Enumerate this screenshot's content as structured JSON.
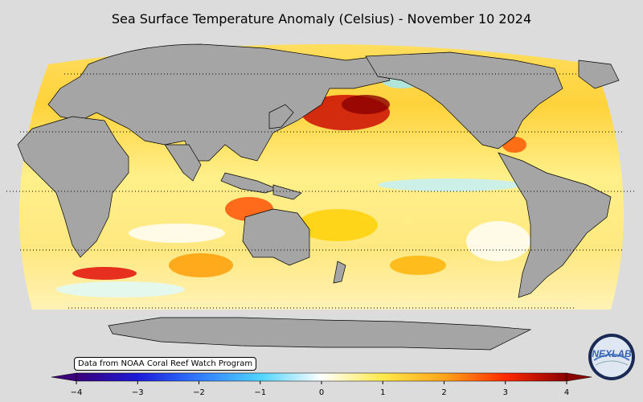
{
  "title": "Sea Surface Temperature Anomaly (Celsius) - November 10 2024",
  "credit": "Data from NOAA Coral Reef Watch Program",
  "colorbar": {
    "min": -4,
    "max": 4,
    "tick_labels": [
      "−4",
      "−3",
      "−2",
      "−1",
      "0",
      "1",
      "2",
      "3",
      "4"
    ],
    "tick_values": [
      -4,
      -3,
      -2,
      -1,
      0,
      1,
      2,
      3,
      4
    ],
    "colors": [
      "#3b007a",
      "#1a1ad8",
      "#2f7bff",
      "#4fd4ff",
      "#ffffff",
      "#ffe94a",
      "#ffa51a",
      "#ff2a00",
      "#8b0000"
    ]
  },
  "map": {
    "projection": "Robinson (Pacific-centered)",
    "land_color": "#a5a5a5",
    "parallels": "dotted",
    "ocean_palette": "anomaly"
  },
  "logo": {
    "text": "NEXLAB"
  }
}
